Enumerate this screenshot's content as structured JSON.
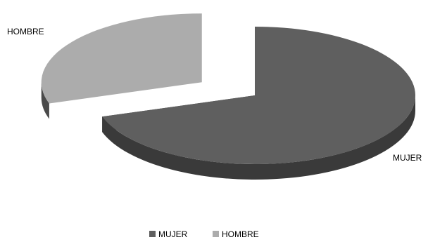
{
  "chart_data": {
    "type": "pie",
    "style": "3d-exploded",
    "slices": [
      {
        "label": "MUJER",
        "value": 70,
        "color": "#5f5f5f",
        "side_color": "#3a3a3a"
      },
      {
        "label": "HOMBRE",
        "value": 30,
        "color": "#acacac",
        "side_color": "#4a4a4a"
      }
    ],
    "data_labels": [
      "MUJER",
      "HOMBRE"
    ],
    "legend": {
      "position": "bottom",
      "items": [
        {
          "label": "MUJER",
          "color": "#5f5f5f"
        },
        {
          "label": "HOMBRE",
          "color": "#acacac"
        }
      ]
    }
  }
}
